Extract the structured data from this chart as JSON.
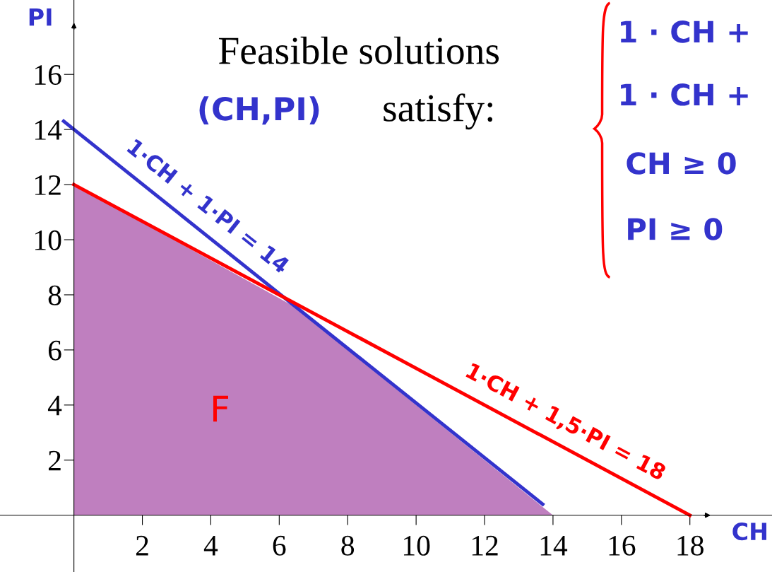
{
  "chart_data": {
    "type": "line",
    "xlabel": "CH",
    "ylabel": "PI",
    "xlim": [
      -2.16,
      20.4
    ],
    "ylim": [
      -2.06,
      18.7
    ],
    "xticks": [
      2,
      4,
      6,
      8,
      10,
      12,
      14,
      16,
      18
    ],
    "yticks": [
      2,
      4,
      6,
      8,
      10,
      12,
      14,
      16
    ],
    "grid": false,
    "legend": false,
    "series": [
      {
        "type": "area",
        "color": "#bf7fbf",
        "x": [
          0,
          6.4,
          14
        ],
        "values": [
          12,
          7.6,
          0
        ]
      },
      {
        "color": "#3333cc",
        "x": [
          -0.3,
          13.7
        ],
        "values": [
          14.3,
          0.4
        ]
      },
      {
        "color": "#ff0000",
        "x": [
          0,
          18
        ],
        "values": [
          12,
          0
        ]
      }
    ],
    "annotations": [
      "1·CH + 1·PI = 14",
      "1·CH + 1,5·PI = 18",
      "F",
      "Feasible solutions",
      "(CH,PI)",
      "satisfy:",
      "1 · CH +",
      "1 · CH +",
      "CH ≥ 0",
      "PI ≥ 0"
    ]
  }
}
